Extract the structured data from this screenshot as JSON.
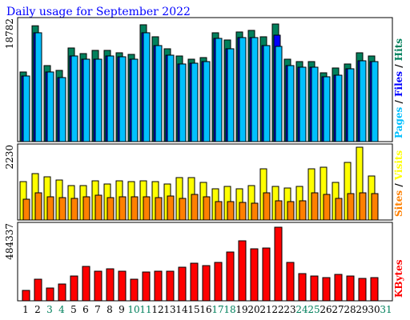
{
  "chart_data": [
    {
      "type": "bar",
      "title": "Daily usage for September 2022",
      "ylim": [
        0,
        18782
      ],
      "yticks": [
        18782
      ],
      "legend_separator": "/",
      "series": [
        {
          "name": "Hits",
          "color": "#00805c",
          "values": [
            11119,
            18500,
            12141,
            11374,
            14953,
            14058,
            14569,
            14569,
            14186,
            13930,
            18659,
            16742,
            14825,
            13675,
            13163,
            13419,
            17381,
            16231,
            17509,
            17764,
            16742,
            18782,
            13163,
            12780,
            12780,
            10991,
            11758,
            12397,
            14186,
            13675,
            null
          ]
        },
        {
          "name": "Files",
          "color": "#0000ff",
          "values": [
            10480,
            17381,
            11119,
            10224,
            13675,
            13163,
            13163,
            13675,
            13547,
            13163,
            17381,
            15336,
            13802,
            12397,
            12524,
            12780,
            16486,
            14825,
            16614,
            16614,
            15336,
            17000,
            12141,
            11885,
            11885,
            10352,
            10607,
            11630,
            12908,
            12780,
            null
          ]
        },
        {
          "name": "Pages",
          "color": "#00c0ff",
          "values": [
            10480,
            17381,
            11119,
            10224,
            13675,
            13163,
            13163,
            13675,
            13547,
            13163,
            17381,
            15336,
            13802,
            12397,
            12524,
            12780,
            16486,
            14825,
            16614,
            16614,
            15336,
            15208,
            12141,
            11885,
            11885,
            10352,
            10607,
            11630,
            12908,
            12780,
            null
          ]
        }
      ]
    },
    {
      "type": "bar",
      "ylim": [
        0,
        2230
      ],
      "yticks": [
        2230
      ],
      "legend_separator": "/",
      "series": [
        {
          "name": "Visits",
          "color": "#ffff00",
          "values": [
            1176,
            1421,
            1323,
            1225,
            1054,
            1054,
            1200,
            1103,
            1200,
            1176,
            1200,
            1176,
            1103,
            1299,
            1299,
            1152,
            956,
            1029,
            956,
            1054,
            1568,
            1029,
            980,
            1029,
            1568,
            1617,
            1152,
            1764,
            2230,
            1348,
            null
          ]
        },
        {
          "name": "Sites",
          "color": "#ff8000",
          "values": [
            637,
            833,
            711,
            686,
            662,
            711,
            760,
            686,
            711,
            711,
            711,
            686,
            735,
            662,
            784,
            711,
            564,
            564,
            539,
            515,
            833,
            588,
            564,
            588,
            833,
            784,
            662,
            809,
            833,
            809,
            null
          ]
        }
      ]
    },
    {
      "type": "bar",
      "ylim": [
        0,
        484337
      ],
      "yticks": [
        484337
      ],
      "categories": [
        "1",
        "2",
        "3",
        "4",
        "5",
        "6",
        "7",
        "8",
        "9",
        "10",
        "11",
        "12",
        "13",
        "14",
        "15",
        "16",
        "17",
        "18",
        "19",
        "20",
        "21",
        "22",
        "23",
        "24",
        "25",
        "26",
        "27",
        "28",
        "29",
        "30",
        "31"
      ],
      "category_colors": [
        "#000000",
        "#000000",
        "#00805c",
        "#00805c",
        "#000000",
        "#000000",
        "#000000",
        "#000000",
        "#000000",
        "#00805c",
        "#00805c",
        "#000000",
        "#000000",
        "#000000",
        "#000000",
        "#000000",
        "#00805c",
        "#00805c",
        "#000000",
        "#000000",
        "#000000",
        "#000000",
        "#000000",
        "#00805c",
        "#00805c",
        "#000000",
        "#000000",
        "#000000",
        "#000000",
        "#000000",
        "#00805c"
      ],
      "series": [
        {
          "name": "KBytes",
          "color": "#ff0000",
          "values": [
            68432,
            142128,
            84224,
            110544,
            163184,
            226352,
            194768,
            210560,
            194768,
            142128,
            189504,
            194768,
            194768,
            221088,
            247408,
            231616,
            252672,
            321104,
            394800,
            342160,
            347424,
            484337,
            252672,
            178976,
            163184,
            152656,
            173712,
            163184,
            147392,
            152656,
            null
          ]
        }
      ]
    }
  ]
}
